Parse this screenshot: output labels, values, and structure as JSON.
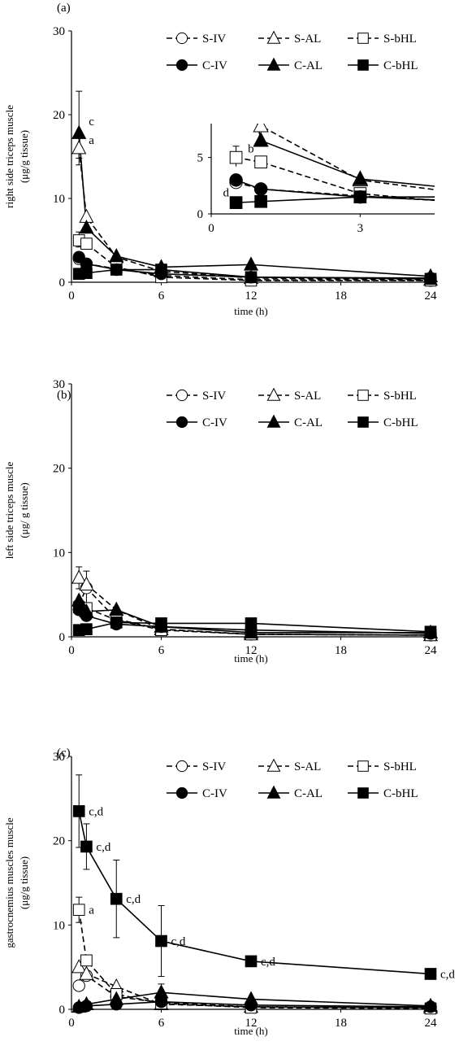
{
  "figure": {
    "xlabel": "time (h)"
  },
  "legend_labels": [
    "S-IV",
    "S-AL",
    "S-bHL",
    "C-IV",
    "C-AL",
    "C-bHL"
  ],
  "chart_data": [
    {
      "type": "line",
      "panel": "(a)",
      "title": "",
      "xlabel": "time (h)",
      "ylabel": "right side triceps muscle",
      "ylabel2": "(μg/g tissue)",
      "xlim": [
        0,
        24
      ],
      "ylim": [
        0,
        30
      ],
      "xticks": [
        0,
        6,
        12,
        18,
        24
      ],
      "yticks": [
        0,
        10,
        20,
        30
      ],
      "grid": false,
      "legend": "top-right",
      "x": [
        0.5,
        1,
        3,
        6,
        12,
        24
      ],
      "series": [
        {
          "name": "S-IV",
          "values": [
            2.8,
            2.2,
            1.6,
            0.8,
            0.3,
            0.2
          ]
        },
        {
          "name": "S-AL",
          "values": [
            16.0,
            7.8,
            3.0,
            1.3,
            0.5,
            0.3
          ]
        },
        {
          "name": "S-bHL",
          "values": [
            5.0,
            4.6,
            1.8,
            0.6,
            0.2,
            0.2
          ]
        },
        {
          "name": "C-IV",
          "values": [
            3.0,
            2.2,
            1.5,
            1.0,
            0.6,
            0.5
          ]
        },
        {
          "name": "C-AL",
          "values": [
            17.8,
            6.5,
            3.1,
            1.8,
            2.1,
            0.7
          ]
        },
        {
          "name": "C-bHL",
          "values": [
            1.0,
            1.1,
            1.5,
            1.5,
            0.6,
            0.4
          ]
        }
      ],
      "error_bars": [
        {
          "series": "C-AL",
          "x": 0.5,
          "upper": 22.8,
          "lower": 14.0
        },
        {
          "series": "S-AL",
          "x": 0.5,
          "upper": 17.2,
          "lower": 14.8
        },
        {
          "series": "S-bHL",
          "x": 0.5,
          "upper": 6.0,
          "lower": 4.2
        }
      ],
      "annotations": [
        {
          "text": "c",
          "x": 0.5,
          "y": 19.2
        },
        {
          "text": "a",
          "x": 0.5,
          "y": 17.0
        }
      ],
      "inset": {
        "xlim": [
          0,
          4.5
        ],
        "ylim": [
          0,
          8
        ],
        "xticks": [
          0,
          3
        ],
        "yticks": [
          0,
          5
        ],
        "annotations": [
          {
            "text": "b",
            "x": 1.0,
            "y": 5.8
          },
          {
            "text": "d",
            "x": 0.5,
            "y": 1.9
          }
        ]
      }
    },
    {
      "type": "line",
      "panel": "(b)",
      "title": "",
      "xlabel": "time (h)",
      "ylabel": "left side triceps muscle",
      "ylabel2": "(μg/ g tissue)",
      "xlim": [
        0,
        24
      ],
      "ylim": [
        0,
        30
      ],
      "xticks": [
        0,
        6,
        12,
        18,
        24
      ],
      "yticks": [
        0,
        10,
        20,
        30
      ],
      "grid": false,
      "legend": "top-right",
      "x": [
        0.5,
        1,
        3,
        6,
        12,
        24
      ],
      "series": [
        {
          "name": "S-IV",
          "values": [
            3.8,
            5.8,
            2.1,
            0.9,
            0.3,
            0.2
          ]
        },
        {
          "name": "S-AL",
          "values": [
            7.0,
            6.2,
            3.2,
            0.9,
            0.3,
            0.2
          ]
        },
        {
          "name": "S-bHL",
          "values": [
            3.5,
            3.4,
            2.0,
            0.8,
            0.3,
            0.2
          ]
        },
        {
          "name": "C-IV",
          "values": [
            3.2,
            2.5,
            1.5,
            1.2,
            0.8,
            0.4
          ]
        },
        {
          "name": "C-AL",
          "values": [
            4.3,
            3.0,
            3.2,
            1.2,
            0.5,
            0.5
          ]
        },
        {
          "name": "C-bHL",
          "values": [
            0.8,
            0.9,
            1.7,
            1.6,
            1.6,
            0.6
          ]
        }
      ],
      "error_bars": [
        {
          "series": "S-AL",
          "x": 0.5,
          "upper": 8.3,
          "lower": 5.7
        },
        {
          "series": "S-IV",
          "x": 1,
          "upper": 7.8,
          "lower": 3.8
        }
      ]
    },
    {
      "type": "line",
      "panel": "(c)",
      "title": "",
      "xlabel": "time (h)",
      "ylabel": "gastrocnemius muscles muscle",
      "ylabel2": "(μg/g tissue)",
      "xlim": [
        0,
        24
      ],
      "ylim": [
        0,
        30
      ],
      "xticks": [
        0,
        6,
        12,
        18,
        24
      ],
      "yticks": [
        0,
        10,
        20,
        30
      ],
      "grid": false,
      "legend": "top-right",
      "x": [
        0.5,
        1,
        3,
        6,
        12,
        24
      ],
      "series": [
        {
          "name": "S-IV",
          "values": [
            2.8,
            4.0,
            1.5,
            0.8,
            0.3,
            0.2
          ]
        },
        {
          "name": "S-AL",
          "values": [
            5.0,
            4.2,
            2.7,
            0.6,
            0.3,
            0.2
          ]
        },
        {
          "name": "S-bHL",
          "values": [
            11.8,
            5.8,
            1.8,
            0.7,
            0.2,
            0.1
          ]
        },
        {
          "name": "C-IV",
          "values": [
            0.2,
            0.4,
            0.6,
            0.9,
            0.5,
            0.3
          ]
        },
        {
          "name": "C-AL",
          "values": [
            0.3,
            0.6,
            1.2,
            2.0,
            1.2,
            0.4
          ]
        },
        {
          "name": "C-bHL",
          "values": [
            23.5,
            19.3,
            13.1,
            8.1,
            5.7,
            4.2
          ]
        }
      ],
      "error_bars": [
        {
          "series": "C-bHL",
          "x": 0.5,
          "upper": 27.8,
          "lower": 19.2
        },
        {
          "series": "C-bHL",
          "x": 1,
          "upper": 22.0,
          "lower": 16.6
        },
        {
          "series": "C-bHL",
          "x": 3,
          "upper": 17.7,
          "lower": 8.5
        },
        {
          "series": "C-bHL",
          "x": 6,
          "upper": 12.3,
          "lower": 3.9
        },
        {
          "series": "C-bHL",
          "x": 12,
          "upper": 6.3,
          "lower": 5.1
        },
        {
          "series": "S-bHL",
          "x": 0.5,
          "upper": 13.3,
          "lower": 10.3
        },
        {
          "series": "C-AL",
          "x": 6,
          "upper": 3.0,
          "lower": 1.0
        }
      ],
      "annotations": [
        {
          "text": "c,d",
          "x": 0.5,
          "y": 23.5
        },
        {
          "text": "c,d",
          "x": 1,
          "y": 19.3
        },
        {
          "text": "c,d",
          "x": 3,
          "y": 13.1
        },
        {
          "text": "c,d",
          "x": 6,
          "y": 8.1
        },
        {
          "text": "c,d",
          "x": 12,
          "y": 5.7
        },
        {
          "text": "c,d",
          "x": 24,
          "y": 4.2
        },
        {
          "text": "a",
          "x": 0.5,
          "y": 11.8
        }
      ]
    }
  ]
}
